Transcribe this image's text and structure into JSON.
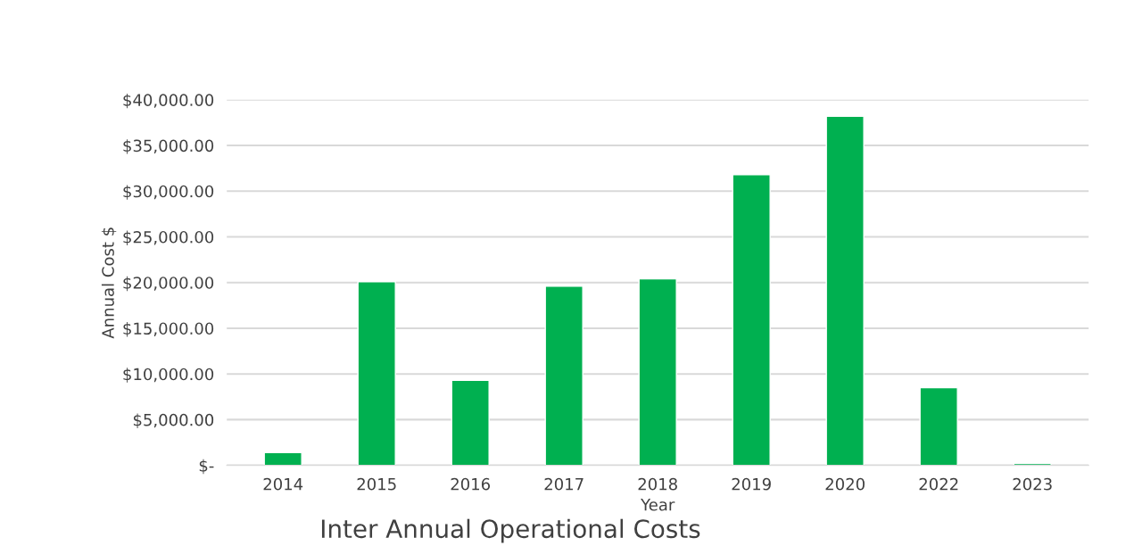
{
  "chart_data": {
    "type": "bar",
    "title": "Inter Annual Operational Costs",
    "xlabel": "Year",
    "ylabel": "Annual Cost $",
    "categories": [
      "2014",
      "2015",
      "2016",
      "2017",
      "2018",
      "2019",
      "2020",
      "2022",
      "2023"
    ],
    "values": [
      1400,
      20100,
      9300,
      19600,
      20400,
      31800,
      38200,
      8500,
      200
    ],
    "color": "#00b050",
    "ylim": [
      0,
      40000
    ],
    "yticks": [
      {
        "value": 0,
        "label": "$-"
      },
      {
        "value": 5000,
        "label": "$5,000.00"
      },
      {
        "value": 10000,
        "label": "$10,000.00"
      },
      {
        "value": 15000,
        "label": "$15,000.00"
      },
      {
        "value": 20000,
        "label": "$20,000.00"
      },
      {
        "value": 25000,
        "label": "$25,000.00"
      },
      {
        "value": 30000,
        "label": "$30,000.00"
      },
      {
        "value": 35000,
        "label": "$35,000.00"
      },
      {
        "value": 40000,
        "label": "$40,000.00"
      }
    ],
    "grid": "y",
    "legend": false
  }
}
